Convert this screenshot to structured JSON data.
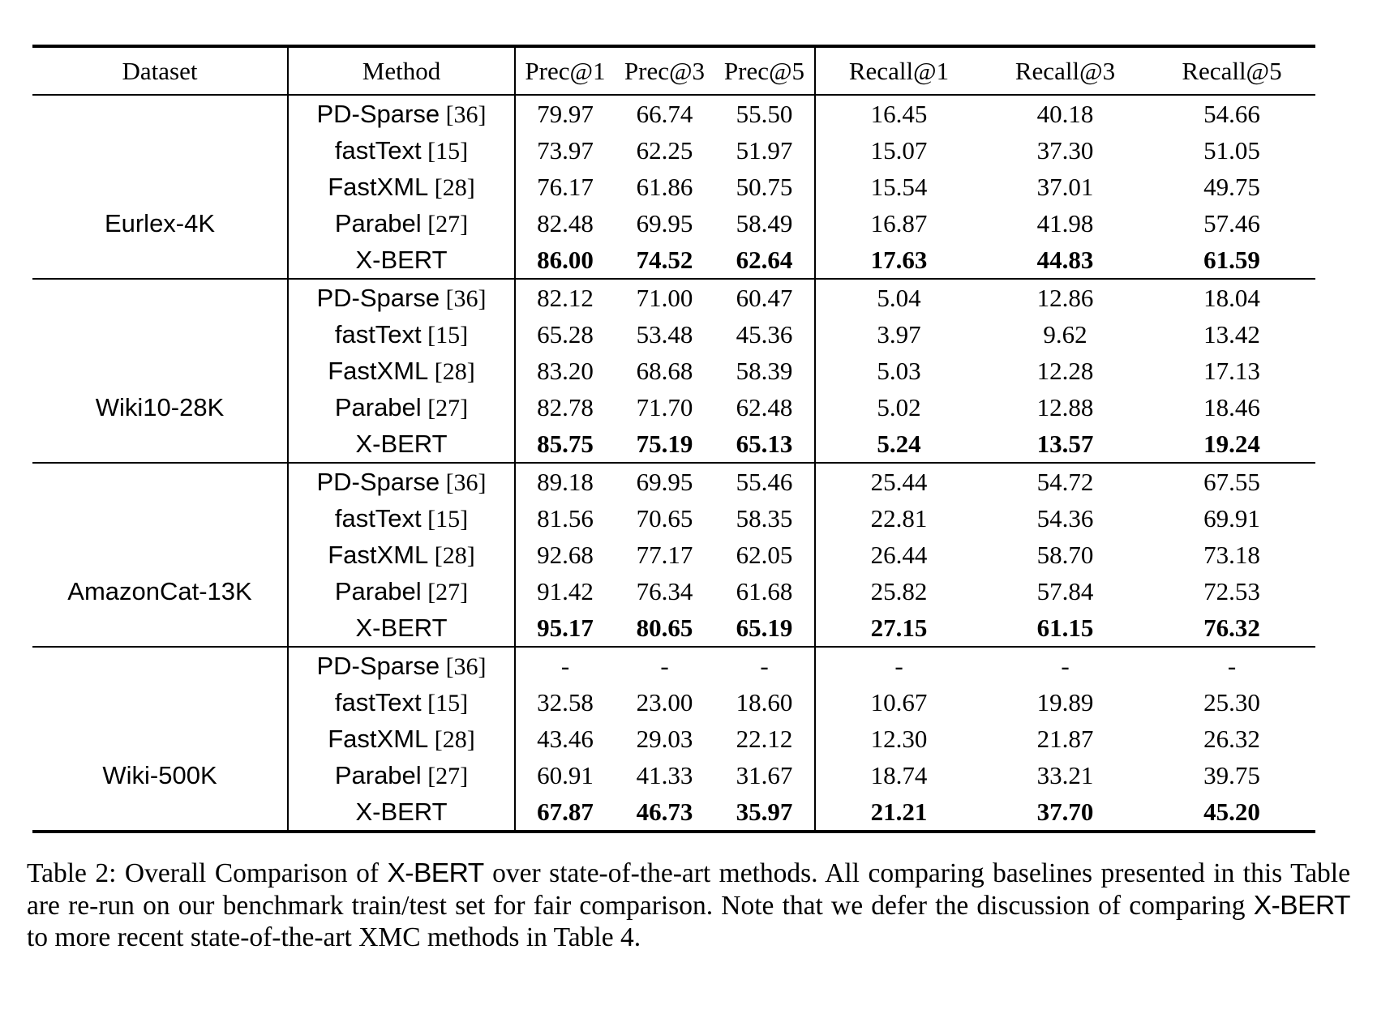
{
  "page": {
    "background": "#ffffff",
    "text_color": "#000000"
  },
  "table": {
    "headers": [
      "Dataset",
      "Method",
      "Prec@1",
      "Prec@3",
      "Prec@5",
      "Recall@1",
      "Recall@3",
      "Recall@5"
    ],
    "sections": [
      {
        "dataset": "Eurlex-4K",
        "rows": [
          {
            "method": "PD-Sparse",
            "cite": "[36]",
            "bold": false,
            "values": [
              "79.97",
              "66.74",
              "55.50",
              "16.45",
              "40.18",
              "54.66"
            ]
          },
          {
            "method": "fastText",
            "cite": "[15]",
            "bold": false,
            "values": [
              "73.97",
              "62.25",
              "51.97",
              "15.07",
              "37.30",
              "51.05"
            ]
          },
          {
            "method": "FastXML",
            "cite": "[28]",
            "bold": false,
            "values": [
              "76.17",
              "61.86",
              "50.75",
              "15.54",
              "37.01",
              "49.75"
            ]
          },
          {
            "method": "Parabel",
            "cite": "[27]",
            "bold": false,
            "values": [
              "82.48",
              "69.95",
              "58.49",
              "16.87",
              "41.98",
              "57.46"
            ]
          },
          {
            "method": "X-BERT",
            "cite": "",
            "bold": true,
            "values": [
              "86.00",
              "74.52",
              "62.64",
              "17.63",
              "44.83",
              "61.59"
            ]
          }
        ]
      },
      {
        "dataset": "Wiki10-28K",
        "rows": [
          {
            "method": "PD-Sparse",
            "cite": "[36]",
            "bold": false,
            "values": [
              "82.12",
              "71.00",
              "60.47",
              "5.04",
              "12.86",
              "18.04"
            ]
          },
          {
            "method": "fastText",
            "cite": "[15]",
            "bold": false,
            "values": [
              "65.28",
              "53.48",
              "45.36",
              "3.97",
              "9.62",
              "13.42"
            ]
          },
          {
            "method": "FastXML",
            "cite": "[28]",
            "bold": false,
            "values": [
              "83.20",
              "68.68",
              "58.39",
              "5.03",
              "12.28",
              "17.13"
            ]
          },
          {
            "method": "Parabel",
            "cite": "[27]",
            "bold": false,
            "values": [
              "82.78",
              "71.70",
              "62.48",
              "5.02",
              "12.88",
              "18.46"
            ]
          },
          {
            "method": "X-BERT",
            "cite": "",
            "bold": true,
            "values": [
              "85.75",
              "75.19",
              "65.13",
              "5.24",
              "13.57",
              "19.24"
            ]
          }
        ]
      },
      {
        "dataset": "AmazonCat-13K",
        "rows": [
          {
            "method": "PD-Sparse",
            "cite": "[36]",
            "bold": false,
            "values": [
              "89.18",
              "69.95",
              "55.46",
              "25.44",
              "54.72",
              "67.55"
            ]
          },
          {
            "method": "fastText",
            "cite": "[15]",
            "bold": false,
            "values": [
              "81.56",
              "70.65",
              "58.35",
              "22.81",
              "54.36",
              "69.91"
            ]
          },
          {
            "method": "FastXML",
            "cite": "[28]",
            "bold": false,
            "values": [
              "92.68",
              "77.17",
              "62.05",
              "26.44",
              "58.70",
              "73.18"
            ]
          },
          {
            "method": "Parabel",
            "cite": "[27]",
            "bold": false,
            "values": [
              "91.42",
              "76.34",
              "61.68",
              "25.82",
              "57.84",
              "72.53"
            ]
          },
          {
            "method": "X-BERT",
            "cite": "",
            "bold": true,
            "values": [
              "95.17",
              "80.65",
              "65.19",
              "27.15",
              "61.15",
              "76.32"
            ]
          }
        ]
      },
      {
        "dataset": "Wiki-500K",
        "rows": [
          {
            "method": "PD-Sparse",
            "cite": "[36]",
            "bold": false,
            "values": [
              "-",
              "-",
              "-",
              "-",
              "-",
              "-"
            ]
          },
          {
            "method": "fastText",
            "cite": "[15]",
            "bold": false,
            "values": [
              "32.58",
              "23.00",
              "18.60",
              "10.67",
              "19.89",
              "25.30"
            ]
          },
          {
            "method": "FastXML",
            "cite": "[28]",
            "bold": false,
            "values": [
              "43.46",
              "29.03",
              "22.12",
              "12.30",
              "21.87",
              "26.32"
            ]
          },
          {
            "method": "Parabel",
            "cite": "[27]",
            "bold": false,
            "values": [
              "60.91",
              "41.33",
              "31.67",
              "18.74",
              "33.21",
              "39.75"
            ]
          },
          {
            "method": "X-BERT",
            "cite": "",
            "bold": true,
            "values": [
              "67.87",
              "46.73",
              "35.97",
              "21.21",
              "37.70",
              "45.20"
            ]
          }
        ]
      }
    ]
  },
  "caption": {
    "segments": [
      {
        "text": "Table 2: Overall Comparison of ",
        "sans": false
      },
      {
        "text": "X-BERT",
        "sans": true
      },
      {
        "text": " over state-of-the-art methods. All comparing baselines presented in this Table are re-run on our benchmark train/test set for fair comparison. Note that we defer the discussion of comparing ",
        "sans": false
      },
      {
        "text": "X-BERT",
        "sans": true
      },
      {
        "text": " to more recent state-of-the-art XMC methods in Table 4.",
        "sans": false
      }
    ]
  }
}
